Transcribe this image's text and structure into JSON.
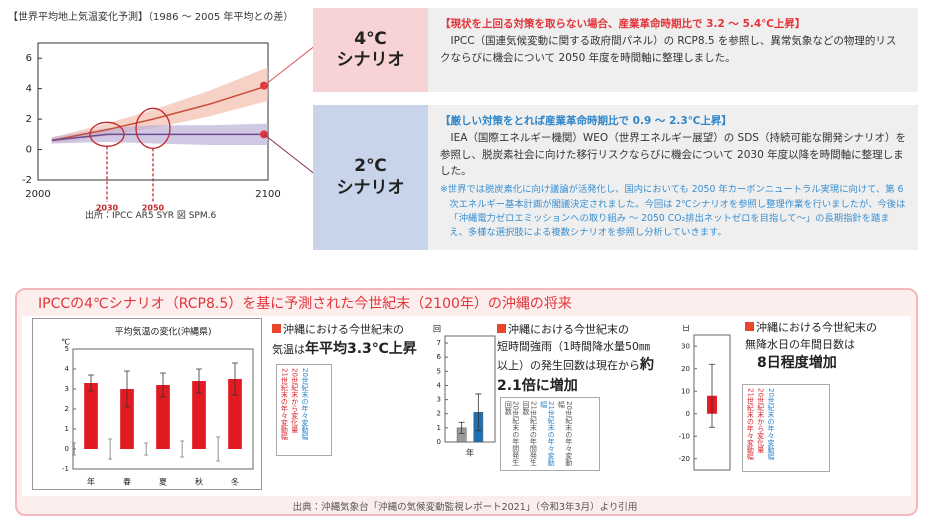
{
  "global": {
    "title": "【世界平均地上気温変化予測】（1986 ～ 2005 年平均との差）",
    "xlim": [
      2000,
      2100
    ],
    "xticks": [
      2000,
      2100
    ],
    "ylim": [
      -2,
      7
    ],
    "yticks": [
      6,
      4,
      2,
      0,
      -2
    ],
    "series": [
      {
        "color": "#c8503a",
        "band_color": "#f4b8a8",
        "x": [
          2006,
          2030,
          2050,
          2075,
          2100
        ],
        "values": [
          0.6,
          1.3,
          2.0,
          3.0,
          4.2
        ],
        "lower": [
          0.4,
          0.9,
          1.4,
          2.2,
          3.2
        ],
        "upper": [
          0.8,
          1.7,
          2.6,
          3.9,
          5.4
        ]
      },
      {
        "color": "#6a4c93",
        "band_color": "#b9acd6",
        "x": [
          2006,
          2030,
          2050,
          2075,
          2100
        ],
        "values": [
          0.6,
          1.0,
          1.0,
          1.0,
          1.0
        ],
        "lower": [
          0.4,
          0.5,
          0.4,
          0.3,
          0.3
        ],
        "upper": [
          0.8,
          1.4,
          1.6,
          1.6,
          1.7
        ]
      }
    ],
    "highlights": [
      2030,
      2050
    ],
    "source": "出所：IPCC AR5 SYR 図 SPM.6"
  },
  "scenarios": [
    {
      "label": [
        "4℃",
        "シナリオ"
      ],
      "heading": "【現状を上回る対策を取らない場合、産業革命時期比で 3.2 ～ 5.4℃上昇】",
      "body": "IPCC（国連気候変動に関する政府間パネル）の RCP8.5 を参照し、異常気象などの物理的リスクならびに機会について 2050 年度を時間軸に整理しました。"
    },
    {
      "label": [
        "2℃",
        "シナリオ"
      ],
      "heading": "【厳しい対策をとれば産業革命時期比で 0.9 ～ 2.3℃上昇】",
      "body": "IEA（国際エネルギー機関）WEO（世界エネルギー展望）の SDS（持続可能な開発シナリオ）を参照し、脱炭素社会に向けた移行リスクならびに機会について 2030 年度以降を時間軸に整理しました。",
      "note": "※世界では脱炭素化に向け議論が活発化し、国内においても 2050 年カーボンニュートラル実現に向けて、第 6 次エネルギー基本計画が閣議決定されました。今回は 2℃シナリオを参照し整理作業を行いましたが、今後は「沖縄電力ゼロエミッションへの取り組み ～ 2050 CO₂排出ネットゼロを目指して～」の長期指針を踏まえ、多様な選択肢による複数シナリオを参照し分析していきます。"
    }
  ],
  "okinawa": {
    "title": "IPCCの4℃シナリオ（RCP8.5）を基に予測された今世紀末（2100年）の沖縄の将来",
    "panels": [
      {
        "chart": {
          "title": "平均気温の変化(沖縄県)",
          "unit": "℃",
          "ylim": [
            -1,
            5
          ],
          "yticks": [
            5,
            4,
            3,
            2,
            1,
            0,
            -1
          ],
          "categories": [
            "年",
            "春",
            "夏",
            "秋",
            "冬"
          ],
          "values": [
            3.3,
            3.0,
            3.2,
            3.4,
            3.5
          ],
          "errors": [
            0.4,
            0.9,
            0.6,
            0.6,
            0.8
          ],
          "baseline_errors": [
            0.3,
            0.5,
            0.3,
            0.4,
            0.6
          ],
          "colors": [
            "#e21b23"
          ]
        },
        "text": {
          "heading": "沖縄における今世紀末の",
          "text": "気温は",
          "emphasis": "年平均3.3℃上昇"
        },
        "inset": [
          "21世紀末の年々変動幅",
          "20世紀末から変化量",
          "20世紀末の年々変動幅"
        ]
      },
      {
        "chart": {
          "unit": "回",
          "ylim": [
            0,
            7.5
          ],
          "yticks": [
            7,
            6,
            5,
            4,
            3,
            2,
            1,
            0
          ],
          "x_label": "年",
          "values": [
            1.0,
            2.1
          ],
          "errors": [
            0.4,
            1.3
          ],
          "colors": [
            "#9a9a9a",
            "#1f6fb5"
          ]
        },
        "text": {
          "heading": "沖縄における今世紀末の",
          "text": "短時間強雨（1時間降水量50㎜以上）の発生回数は現在から",
          "emphasis": "約2.1倍に増加"
        },
        "inset": [
          "20世紀末の年間発生回数",
          "21世紀末の年間発生回数",
          "21世紀末の年々変動幅",
          "20世紀末の年々変動幅"
        ]
      },
      {
        "chart": {
          "unit": "日",
          "ylim": [
            -25,
            35
          ],
          "yticks": [
            30,
            20,
            10,
            0,
            -10,
            -20
          ],
          "values": [
            8
          ],
          "errors": [
            14
          ],
          "colors": [
            "#e21b23"
          ]
        },
        "text": {
          "heading": "沖縄における今世紀末の",
          "text": "無降水日の年間日数は",
          "emphasis": "8日程度増加"
        },
        "inset": [
          "21世紀末の年々変動幅",
          "20世紀末から変化量",
          "20世紀末の年々変動幅"
        ]
      }
    ],
    "source": "出典：沖縄気象台「沖縄の気候変動監視レポート2021」（令和3年3月）より引用"
  }
}
